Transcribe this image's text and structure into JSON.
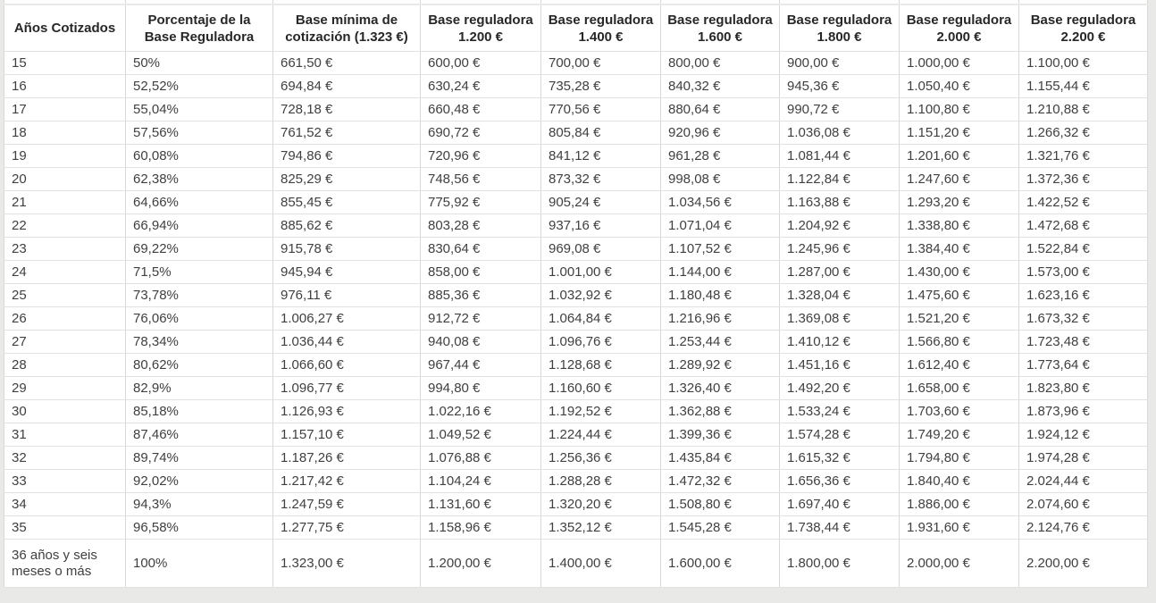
{
  "table": {
    "columns": [
      "Años Cotizados",
      "Porcentaje de la Base Reguladora",
      "Base mínima de cotización (1.323 €)",
      "Base reguladora 1.200 €",
      "Base reguladora 1.400 €",
      "Base reguladora 1.600 €",
      "Base reguladora 1.800 €",
      "Base reguladora 2.000 €",
      "Base reguladora 2.200 €"
    ],
    "rows": [
      [
        "15",
        "50%",
        "661,50 €",
        "600,00 €",
        "700,00 €",
        "800,00 €",
        "900,00 €",
        "1.000,00 €",
        "1.100,00 €"
      ],
      [
        "16",
        "52,52%",
        "694,84 €",
        "630,24 €",
        "735,28 €",
        "840,32 €",
        "945,36 €",
        "1.050,40 €",
        "1.155,44 €"
      ],
      [
        "17",
        "55,04%",
        "728,18 €",
        "660,48 €",
        "770,56 €",
        "880,64 €",
        "990,72 €",
        "1.100,80 €",
        "1.210,88 €"
      ],
      [
        "18",
        "57,56%",
        "761,52 €",
        "690,72 €",
        "805,84 €",
        "920,96 €",
        "1.036,08 €",
        "1.151,20 €",
        "1.266,32 €"
      ],
      [
        "19",
        "60,08%",
        "794,86 €",
        "720,96 €",
        "841,12 €",
        "961,28 €",
        "1.081,44 €",
        "1.201,60 €",
        "1.321,76 €"
      ],
      [
        "20",
        "62,38%",
        "825,29 €",
        "748,56 €",
        "873,32 €",
        "998,08 €",
        "1.122,84 €",
        "1.247,60 €",
        "1.372,36 €"
      ],
      [
        "21",
        "64,66%",
        "855,45 €",
        "775,92 €",
        "905,24 €",
        "1.034,56 €",
        "1.163,88 €",
        "1.293,20 €",
        "1.422,52 €"
      ],
      [
        "22",
        "66,94%",
        "885,62 €",
        "803,28 €",
        "937,16 €",
        "1.071,04 €",
        "1.204,92 €",
        "1.338,80 €",
        "1.472,68 €"
      ],
      [
        "23",
        "69,22%",
        "915,78 €",
        "830,64 €",
        "969,08 €",
        "1.107,52 €",
        "1.245,96 €",
        "1.384,40 €",
        "1.522,84 €"
      ],
      [
        "24",
        "71,5%",
        "945,94 €",
        "858,00 €",
        "1.001,00 €",
        "1.144,00 €",
        "1.287,00 €",
        "1.430,00 €",
        "1.573,00 €"
      ],
      [
        "25",
        "73,78%",
        "976,11 €",
        "885,36 €",
        "1.032,92 €",
        "1.180,48 €",
        "1.328,04 €",
        "1.475,60 €",
        "1.623,16 €"
      ],
      [
        "26",
        "76,06%",
        "1.006,27 €",
        "912,72 €",
        "1.064,84 €",
        "1.216,96 €",
        "1.369,08 €",
        "1.521,20 €",
        "1.673,32 €"
      ],
      [
        "27",
        "78,34%",
        "1.036,44 €",
        "940,08 €",
        "1.096,76 €",
        "1.253,44 €",
        "1.410,12 €",
        "1.566,80 €",
        "1.723,48 €"
      ],
      [
        "28",
        "80,62%",
        "1.066,60 €",
        "967,44 €",
        "1.128,68 €",
        "1.289,92 €",
        "1.451,16 €",
        "1.612,40 €",
        "1.773,64 €"
      ],
      [
        "29",
        "82,9%",
        "1.096,77 €",
        "994,80 €",
        "1.160,60 €",
        "1.326,40 €",
        "1.492,20 €",
        "1.658,00 €",
        "1.823,80 €"
      ],
      [
        "30",
        "85,18%",
        "1.126,93 €",
        "1.022,16 €",
        "1.192,52 €",
        "1.362,88 €",
        "1.533,24 €",
        "1.703,60 €",
        "1.873,96 €"
      ],
      [
        "31",
        "87,46%",
        "1.157,10 €",
        "1.049,52 €",
        "1.224,44 €",
        "1.399,36 €",
        "1.574,28 €",
        "1.749,20 €",
        "1.924,12 €"
      ],
      [
        "32",
        "89,74%",
        "1.187,26 €",
        "1.076,88 €",
        "1.256,36 €",
        "1.435,84 €",
        "1.615,32 €",
        "1.794,80 €",
        "1.974,28 €"
      ],
      [
        "33",
        "92,02%",
        "1.217,42 €",
        "1.104,24 €",
        "1.288,28 €",
        "1.472,32 €",
        "1.656,36 €",
        "1.840,40 €",
        "2.024,44 €"
      ],
      [
        "34",
        "94,3%",
        "1.247,59 €",
        "1.131,60 €",
        "1.320,20 €",
        "1.508,80 €",
        "1.697,40 €",
        "1.886,00 €",
        "2.074,60 €"
      ],
      [
        "35",
        "96,58%",
        "1.277,75 €",
        "1.158,96 €",
        "1.352,12 €",
        "1.545,28 €",
        "1.738,44 €",
        "1.931,60 €",
        "2.124,76 €"
      ],
      [
        "36 años y seis meses o más",
        "100%",
        "1.323,00 €",
        "1.200,00 €",
        "1.400,00 €",
        "1.600,00 €",
        "1.800,00 €",
        "2.000,00 €",
        "2.200,00 €"
      ]
    ]
  }
}
